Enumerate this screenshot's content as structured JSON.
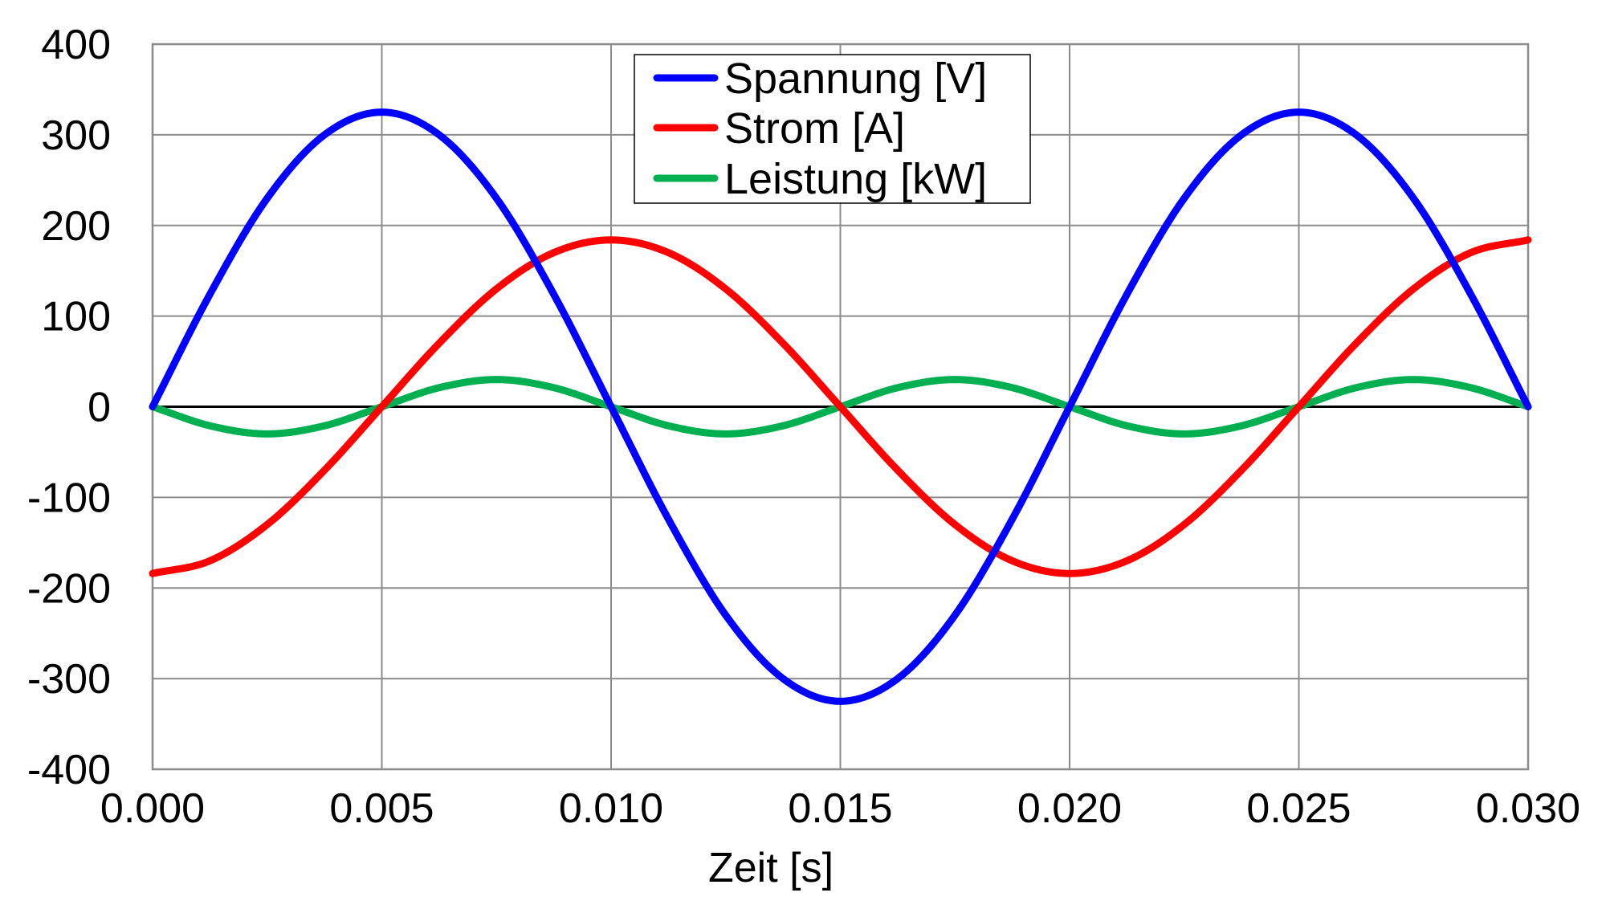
{
  "chart_data": {
    "type": "line",
    "title": "",
    "xlabel": "Zeit [s]",
    "ylabel": "",
    "xlim": [
      0.0,
      0.03
    ],
    "ylim": [
      -400,
      400
    ],
    "x_ticks": [
      0.0,
      0.005,
      0.01,
      0.015,
      0.02,
      0.025,
      0.03
    ],
    "x_tick_labels": [
      "0.000",
      "0.005",
      "0.010",
      "0.015",
      "0.020",
      "0.025",
      "0.030"
    ],
    "y_ticks": [
      400,
      300,
      200,
      100,
      0,
      -100,
      -200,
      -300,
      -400
    ],
    "y_tick_labels": [
      "400",
      "300",
      "200",
      "100",
      "0",
      "-100",
      "-200",
      "-300",
      "-400"
    ],
    "grid": true,
    "legend_position": "top-center",
    "series": [
      {
        "name": "Spannung [V]",
        "color": "#0000ff",
        "x": [
          0.0,
          0.00125,
          0.0025,
          0.00375,
          0.005,
          0.00625,
          0.0075,
          0.00875,
          0.01,
          0.01125,
          0.0125,
          0.01375,
          0.015,
          0.01625,
          0.0175,
          0.01875,
          0.02,
          0.02125,
          0.0225,
          0.02375,
          0.025,
          0.02625,
          0.0275,
          0.02875,
          0.03
        ],
        "values": [
          0,
          124,
          230,
          300,
          325,
          300,
          230,
          124,
          0,
          -124,
          -230,
          -300,
          -325,
          -300,
          -230,
          -124,
          0,
          124,
          230,
          300,
          325,
          300,
          230,
          124,
          0
        ]
      },
      {
        "name": "Strom [A]",
        "color": "#ff0000",
        "x": [
          0.0,
          0.00125,
          0.0025,
          0.00375,
          0.005,
          0.00625,
          0.0075,
          0.00875,
          0.01,
          0.01125,
          0.0125,
          0.01375,
          0.015,
          0.01625,
          0.0175,
          0.01875,
          0.02,
          0.02125,
          0.0225,
          0.02375,
          0.025,
          0.02625,
          0.0275,
          0.02875,
          0.03
        ],
        "values": [
          -184,
          -170,
          -130,
          -70,
          0,
          70,
          130,
          170,
          184,
          170,
          130,
          70,
          0,
          -70,
          -130,
          -170,
          -184,
          -170,
          -130,
          -70,
          0,
          70,
          130,
          170,
          184
        ]
      },
      {
        "name": "Leistung [kW]",
        "color": "#00b050",
        "x": [
          0.0,
          0.00125,
          0.0025,
          0.00375,
          0.005,
          0.00625,
          0.0075,
          0.00875,
          0.01,
          0.01125,
          0.0125,
          0.01375,
          0.015,
          0.01625,
          0.0175,
          0.01875,
          0.02,
          0.02125,
          0.0225,
          0.02375,
          0.025,
          0.02625,
          0.0275,
          0.02875,
          0.03
        ],
        "values": [
          0,
          -21,
          -30,
          -21,
          0,
          21,
          30,
          21,
          0,
          -21,
          -30,
          -21,
          0,
          21,
          30,
          21,
          0,
          -21,
          -30,
          -21,
          0,
          21,
          30,
          21,
          0
        ]
      }
    ]
  }
}
